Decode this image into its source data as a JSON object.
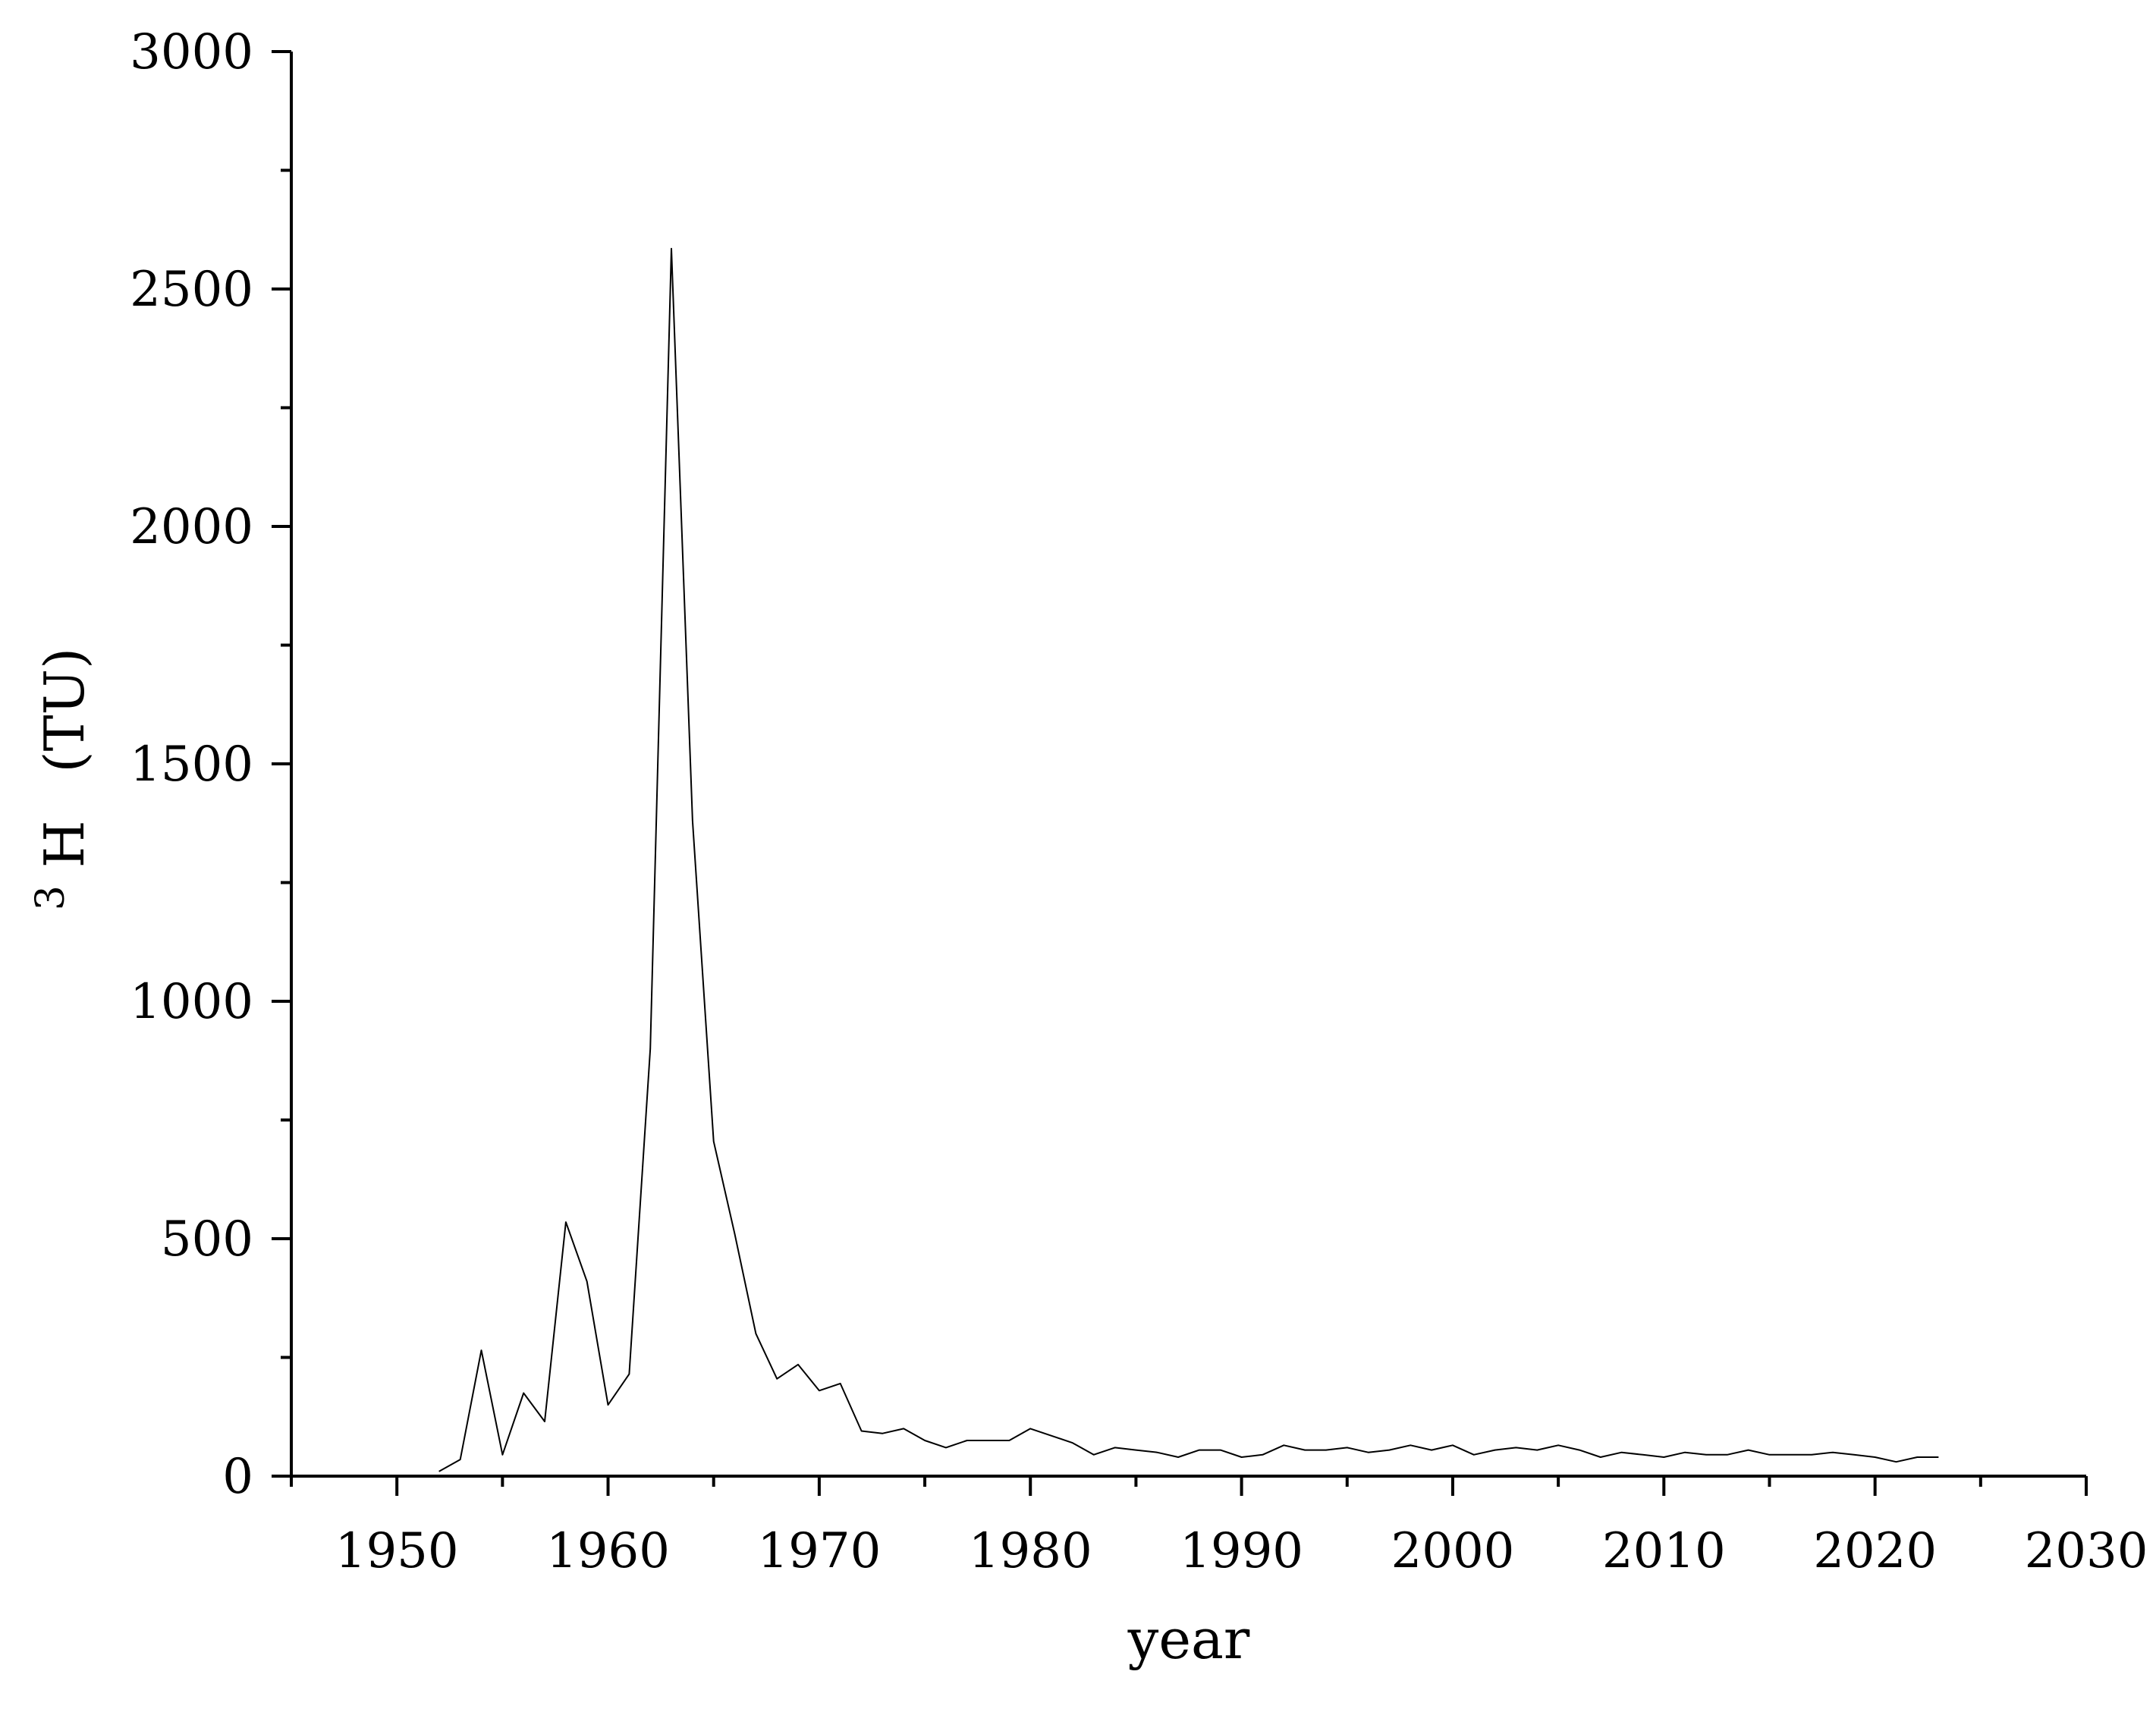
{
  "chart_data": {
    "type": "line",
    "title": "",
    "xlabel": "year",
    "ylabel": "(TU)",
    "ylabel_prefix": "H",
    "ylabel_superscript": "3",
    "xlim": [
      1945,
      2030
    ],
    "ylim": [
      0,
      3000
    ],
    "x_major_ticks": [
      1950,
      1960,
      1970,
      1980,
      1990,
      2000,
      2010,
      2020,
      2030
    ],
    "x_tick_labels": [
      "1950",
      "1960",
      "1970",
      "1980",
      "1990",
      "2000",
      "2010",
      "2020",
      "2030"
    ],
    "y_major_ticks": [
      0,
      500,
      1000,
      1500,
      2000,
      2500,
      3000
    ],
    "y_tick_labels": [
      "0",
      "500",
      "1000",
      "1500",
      "2000",
      "2500",
      "3000"
    ],
    "grid": false,
    "legend": "none",
    "line_color": "#000000",
    "series": [
      {
        "x": [
          1952,
          1953,
          1954,
          1955,
          1956,
          1957,
          1958,
          1959,
          1960,
          1961,
          1962,
          1963,
          1964,
          1965,
          1966,
          1967,
          1968,
          1969,
          1970,
          1971,
          1972,
          1973,
          1974,
          1975,
          1976,
          1977,
          1978,
          1979,
          1980,
          1981,
          1982,
          1983,
          1984,
          1985,
          1986,
          1987,
          1988,
          1989,
          1990,
          1991,
          1992,
          1993,
          1994,
          1995,
          1996,
          1997,
          1998,
          1999,
          2000,
          2001,
          2002,
          2003,
          2004,
          2005,
          2006,
          2007,
          2008,
          2009,
          2010,
          2011,
          2012,
          2013,
          2014,
          2015,
          2016,
          2017,
          2018,
          2019,
          2020,
          2021,
          2022,
          2023
        ],
        "values": [
          10,
          35,
          265,
          45,
          175,
          115,
          535,
          410,
          150,
          215,
          900,
          2585,
          1380,
          705,
          510,
          300,
          205,
          235,
          180,
          195,
          95,
          90,
          100,
          75,
          60,
          75,
          75,
          75,
          100,
          85,
          70,
          45,
          60,
          55,
          50,
          40,
          55,
          55,
          40,
          45,
          65,
          55,
          55,
          60,
          50,
          55,
          65,
          55,
          65,
          45,
          55,
          60,
          55,
          65,
          55,
          40,
          50,
          45,
          40,
          50,
          45,
          45,
          55,
          45,
          45,
          45,
          50,
          45,
          40,
          30,
          40,
          40
        ]
      }
    ]
  }
}
